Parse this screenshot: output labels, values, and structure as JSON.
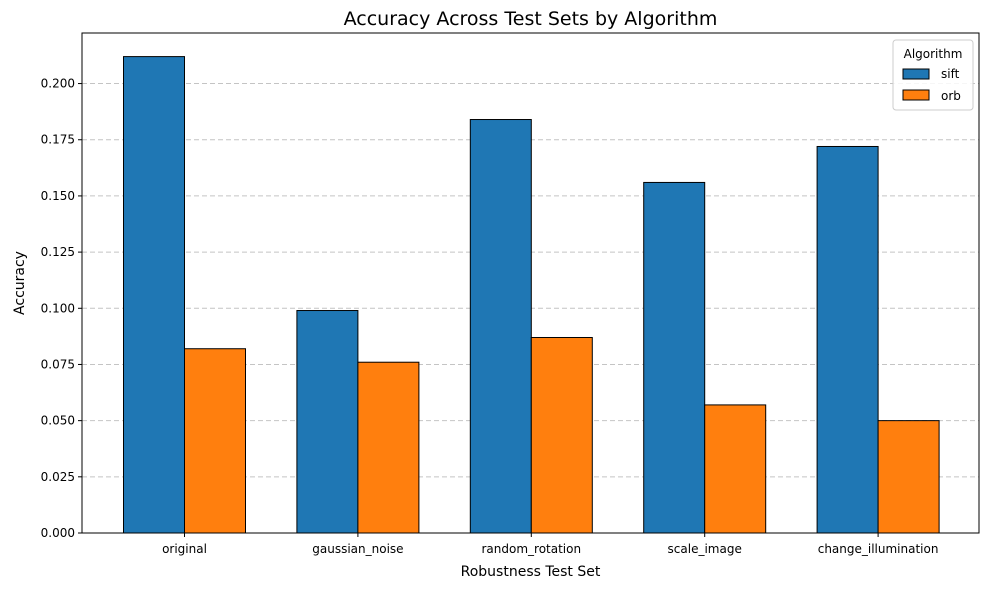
{
  "chart_data": {
    "type": "bar",
    "title": "Accuracy Across Test Sets by Algorithm",
    "xlabel": "Robustness Test Set",
    "ylabel": "Accuracy",
    "categories": [
      "original",
      "gaussian_noise",
      "random_rotation",
      "scale_image",
      "change_illumination"
    ],
    "series": [
      {
        "name": "sift",
        "color": "#1f77b4",
        "values": [
          0.212,
          0.099,
          0.184,
          0.156,
          0.172
        ]
      },
      {
        "name": "orb",
        "color": "#ff7f0e",
        "values": [
          0.082,
          0.076,
          0.087,
          0.057,
          0.05
        ]
      }
    ],
    "ylim": [
      0,
      0.2225
    ],
    "yticks": [
      "0.000",
      "0.025",
      "0.050",
      "0.075",
      "0.100",
      "0.125",
      "0.150",
      "0.175",
      "0.200"
    ],
    "grid": "y-dashed",
    "legend": {
      "title": "Algorithm",
      "position": "top-right"
    }
  }
}
